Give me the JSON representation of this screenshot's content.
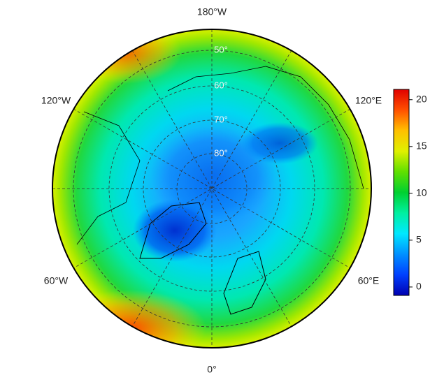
{
  "map": {
    "lon_labels": [
      "180°W",
      "120°W",
      "120°E",
      "60°W",
      "60°E",
      "0°"
    ],
    "lat_labels": [
      "50°",
      "60°",
      "70°",
      "80°"
    ],
    "colorbar": {
      "lim": [
        -0.9,
        21.1
      ],
      "ticks": [
        0,
        5,
        10,
        15,
        20
      ],
      "colors": [
        "#0000b0",
        "#0040ff",
        "#0090ff",
        "#00e8ff",
        "#00f0a0",
        "#00d030",
        "#60e000",
        "#e0f000",
        "#ffc000",
        "#ff5000",
        "#e00000"
      ]
    }
  }
}
